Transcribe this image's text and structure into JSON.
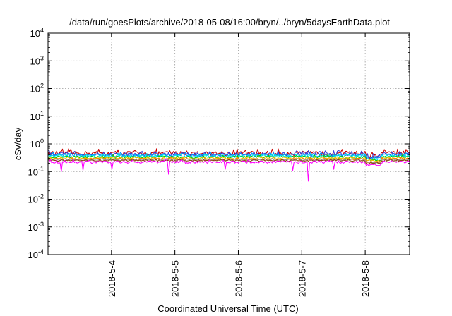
{
  "chart_data": {
    "type": "line",
    "title": "/data/run/goesPlots/archive/2018-05-08/16:00/bryn/../bryn/5daysEarthData.plot",
    "xlabel": "Coordinated Universal Time (UTC)",
    "ylabel": "cSv/day",
    "yscale": "log",
    "ylim": [
      0.0001,
      10000
    ],
    "xlim": [
      0.0,
      5.7
    ],
    "y_ticks": [
      {
        "base": "10",
        "exp": "-4",
        "value": 0.0001
      },
      {
        "base": "10",
        "exp": "-3",
        "value": 0.001
      },
      {
        "base": "10",
        "exp": "-2",
        "value": 0.01
      },
      {
        "base": "10",
        "exp": "-1",
        "value": 0.1
      },
      {
        "base": "10",
        "exp": "0",
        "value": 1
      },
      {
        "base": "10",
        "exp": "1",
        "value": 10
      },
      {
        "base": "10",
        "exp": "2",
        "value": 100
      },
      {
        "base": "10",
        "exp": "3",
        "value": 1000
      },
      {
        "base": "10",
        "exp": "4",
        "value": 10000
      }
    ],
    "x_ticks": [
      {
        "label": "2018-5-4",
        "value": 1.0
      },
      {
        "label": "2018-5-5",
        "value": 2.0
      },
      {
        "label": "2018-5-6",
        "value": 3.0
      },
      {
        "label": "2018-5-7",
        "value": 4.0
      },
      {
        "label": "2018-5-8",
        "value": 5.0
      }
    ],
    "grid": true,
    "series": [
      {
        "color": "#cc0000",
        "level": 0.46,
        "noise": 0.12,
        "dips": [
          [
            0.3,
            0.46
          ],
          [
            1.55,
            0.4
          ],
          [
            3.7,
            0.4
          ],
          [
            5.2,
            0.34
          ]
        ]
      },
      {
        "color": "#3a3ad6",
        "level": 0.42,
        "noise": 0.1,
        "dips": [
          [
            1.35,
            0.35
          ],
          [
            3.0,
            0.36
          ],
          [
            5.15,
            0.32
          ]
        ]
      },
      {
        "color": "#0096ff",
        "level": 0.39,
        "noise": 0.08,
        "dips": [
          [
            0.6,
            0.33
          ],
          [
            2.6,
            0.34
          ],
          [
            5.1,
            0.31
          ]
        ]
      },
      {
        "color": "#00e5e5",
        "level": 0.36,
        "noise": 0.07,
        "dips": [
          [
            1.9,
            0.32
          ],
          [
            4.2,
            0.31
          ],
          [
            5.12,
            0.29
          ]
        ]
      },
      {
        "color": "#00d100",
        "level": 0.33,
        "noise": 0.06,
        "dips": [
          [
            2.3,
            0.29
          ],
          [
            4.5,
            0.29
          ],
          [
            5.15,
            0.27
          ]
        ]
      },
      {
        "color": "#f0c000",
        "level": 0.3,
        "noise": 0.05,
        "dips": [
          [
            3.4,
            0.27
          ],
          [
            5.1,
            0.25
          ]
        ]
      },
      {
        "color": "#ff7f00",
        "level": 0.28,
        "noise": 0.05,
        "dips": [
          [
            1.1,
            0.26
          ],
          [
            5.1,
            0.24
          ]
        ]
      },
      {
        "color": "#9a9a9a",
        "level": 0.265,
        "noise": 0.04,
        "dips": [
          [
            5.1,
            0.23
          ]
        ]
      },
      {
        "color": "#8b4513",
        "level": 0.25,
        "noise": 0.04,
        "dips": [
          [
            5.1,
            0.22
          ]
        ]
      },
      {
        "color": "#ff00ff",
        "level": 0.22,
        "noise": 0.06,
        "dips": [
          [
            0.2,
            0.1
          ],
          [
            0.55,
            0.11
          ],
          [
            1.0,
            0.12
          ],
          [
            1.9,
            0.08
          ],
          [
            2.8,
            0.12
          ],
          [
            3.85,
            0.11
          ],
          [
            4.1,
            0.045
          ],
          [
            4.5,
            0.12
          ],
          [
            5.05,
            0.16
          ]
        ]
      }
    ]
  }
}
